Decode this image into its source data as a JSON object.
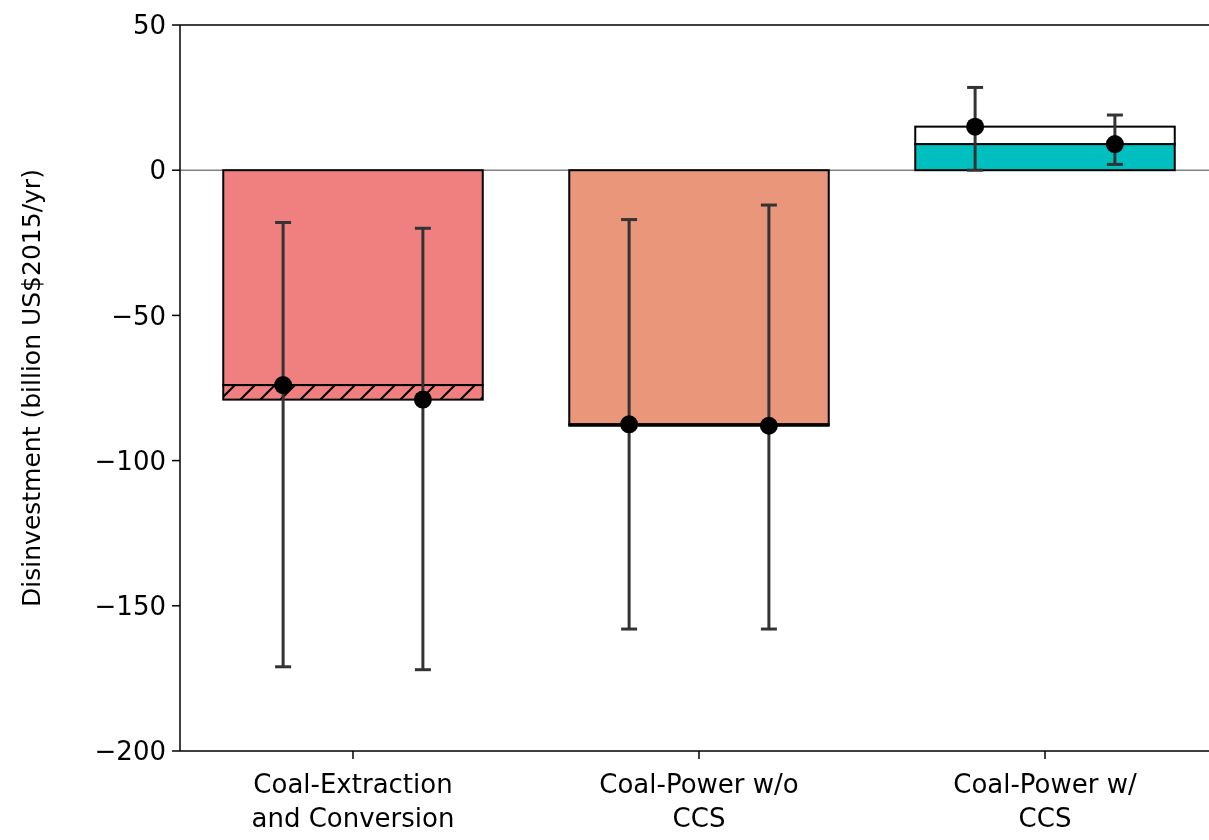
{
  "chart_data": {
    "type": "bar",
    "stacked": true,
    "ylabel": "Disinvestment (billion US$2015/yr)",
    "categories": [
      "Coal-Extraction and Conversion",
      "Coal-Power w/o CCS",
      "Coal-Power w/ CCS"
    ],
    "ylim": [
      -200,
      50
    ],
    "yticks": [
      -200,
      -150,
      -100,
      -50,
      0,
      50
    ],
    "grid": false,
    "ref_lines": [
      {
        "axis": "y",
        "value": 0,
        "color": "#808080"
      }
    ],
    "series": [
      {
        "colors": [
          "#f08080",
          "#e9967a",
          "#00bfbf"
        ],
        "values": [
          -74,
          -87.5,
          9
        ]
      },
      {
        "colors": [
          "#f08080",
          "#e9967a",
          "#ffffff"
        ],
        "values": [
          -5,
          -0.5,
          6
        ]
      },
      {
        "type": "scatter",
        "x": [
          "Coal-Extraction and Conversion",
          "Coal-Power w/o CCS",
          "Coal-Power w/ CCS"
        ],
        "color": "#000000",
        "marker": "circle",
        "values": [
          -74,
          -87.5,
          15
        ],
        "errors": [
          [
            -171,
            -18
          ],
          [
            -158,
            -17
          ],
          [
            0,
            28.5
          ]
        ]
      },
      {
        "type": "scatter",
        "x": [
          "Coal-Extraction and Conversion",
          "Coal-Power w/o CCS",
          "Coal-Power w/ CCS"
        ],
        "color": "#000000",
        "marker": "circle",
        "values": [
          -79,
          -88,
          9
        ],
        "errors": [
          [
            -172,
            -20
          ],
          [
            -158,
            -12
          ],
          [
            2,
            19
          ]
        ]
      }
    ]
  }
}
